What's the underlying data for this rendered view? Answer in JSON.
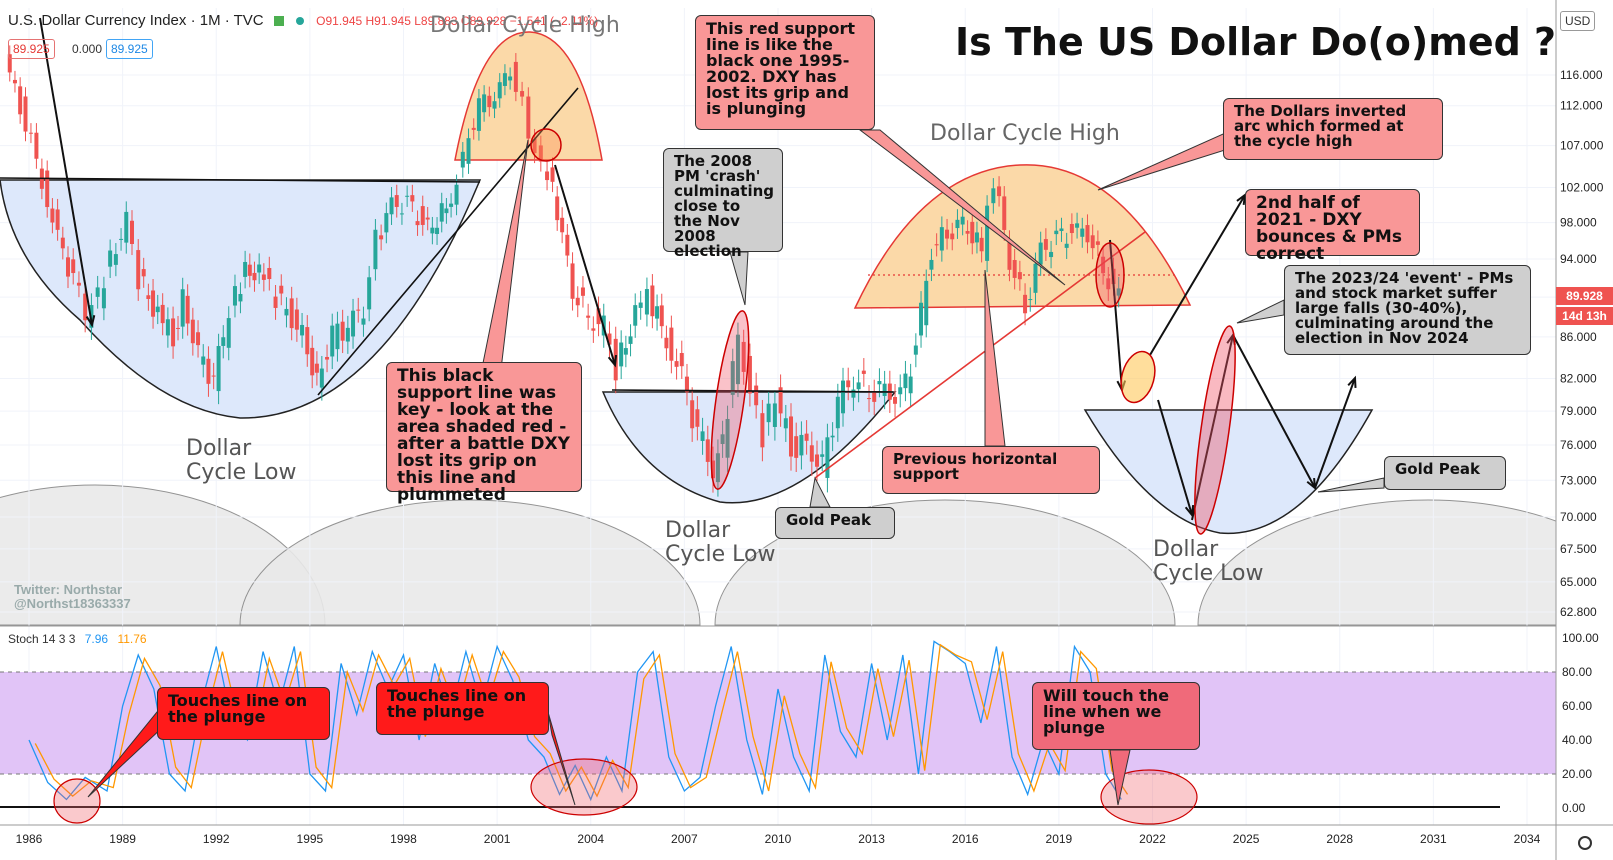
{
  "header": {
    "symbol": "U.S. Dollar Currency Index · 1M · TVC",
    "ohlc": "O91.945  H91.945  L89.883  C89.928  −1.541 (−2.11%)",
    "price_box_1": "89.925",
    "price_box_2": "0.000",
    "price_box_3": "89.925"
  },
  "title": "Is The US Dollar Do(o)med ?",
  "currency": "USD",
  "price_tag": {
    "price": "89.928",
    "countdown": "14d 13h"
  },
  "watermark": {
    "line1": "Twitter: Northstar",
    "line2": "@Northst18363337"
  },
  "stoch_header": {
    "label": "Stoch 14 3 3",
    "k": "7.96",
    "d": "11.76"
  },
  "cycle_labels": {
    "high_1": "Dollar Cycle High",
    "high_2": "Dollar Cycle High",
    "low_1": [
      "Dollar",
      "Cycle Low"
    ],
    "low_2": [
      "Dollar",
      "Cycle Low"
    ],
    "low_3": [
      "Dollar",
      "Cycle Low"
    ]
  },
  "annotations": {
    "red_support": "This red support line is like the black one 1995-2002. DXY has lost its grip and is plunging",
    "pm_crash": "The 2008 PM 'crash' culminating close to the Nov 2008 election",
    "inverted_arc": "The Dollars inverted arc which formed at the cycle high",
    "second_half_2021": "2nd half of 2021 - DXY bounces & PMs correct",
    "event_2023": "The 2023/24 'event' - PMs and stock market suffer large falls (30-40%), culminating around the election in Nov 2024",
    "black_support": "This black support line was key - look at the area shaded red - after a battle DXY lost its grip on this line and plummeted",
    "previous_horizontal": "Previous horizontal support",
    "gold_peak_1": "Gold Peak",
    "gold_peak_2": "Gold Peak",
    "touches_1": "Touches line on the plunge",
    "touches_2": "Touches line on the plunge",
    "will_touch": "Will touch the line when we plunge"
  },
  "colors": {
    "candle_up": "#26a69a",
    "candle_down": "#ef5350",
    "stoch_k": "#2196f3",
    "stoch_d": "#ff9800",
    "stoch_band": "#e1c4f7",
    "arc_blue": "#dde8fb",
    "arc_orange": "#fbd9a8",
    "grey_arc": "#e9e9e9"
  },
  "chart_data": [
    {
      "type": "line",
      "series_kind": "candlestick-approximation",
      "x_axis": {
        "ticks": [
          "1986",
          "1989",
          "1992",
          "1995",
          "1998",
          "2001",
          "2004",
          "2007",
          "2010",
          "2013",
          "2016",
          "2019",
          "2022",
          "2025",
          "2028",
          "2031",
          "2034"
        ],
        "range": [
          1985.5,
          2035.5
        ]
      },
      "y_axis": {
        "ticks": [
          116,
          112,
          107,
          102,
          98,
          94,
          90,
          86,
          82,
          79,
          76,
          73,
          70,
          67.5,
          65,
          62.8
        ],
        "tick_labels": [
          "116.000",
          "112.000",
          "107.000",
          "102.000",
          "98.000",
          "94.000",
          "90.000",
          "86.000",
          "82.000",
          "79.000",
          "76.000",
          "73.000",
          "70.000",
          "67.500",
          "65.000",
          "62.800"
        ],
        "scale": "log",
        "range": [
          61.5,
          123
        ]
      },
      "x": [
        1985.3,
        1985.8,
        1986.5,
        1987.0,
        1987.5,
        1987.9,
        1988.3,
        1988.7,
        1989.2,
        1989.6,
        1990.2,
        1990.7,
        1991.0,
        1991.5,
        1992.0,
        1992.3,
        1992.7,
        1993.0,
        1993.6,
        1994.0,
        1994.5,
        1995.0,
        1995.3,
        1995.8,
        1996.3,
        1996.8,
        1997.2,
        1997.7,
        1998.2,
        1998.7,
        1999.0,
        1999.6,
        2000.0,
        2000.5,
        2001.0,
        2001.5,
        2001.9,
        2002.3,
        2002.7,
        2003.0,
        2003.5,
        2004.0,
        2004.5,
        2004.9,
        2005.5,
        2005.9,
        2006.5,
        2007.0,
        2007.5,
        2008.0,
        2008.3,
        2008.8,
        2009.2,
        2009.6,
        2010.0,
        2010.5,
        2011.0,
        2011.5,
        2012.0,
        2012.5,
        2013.0,
        2013.5,
        2014.0,
        2014.5,
        2015.0,
        2015.5,
        2016.0,
        2016.6,
        2017.0,
        2017.5,
        2018.0,
        2018.5,
        2019.0,
        2019.5,
        2020.0,
        2020.5,
        2021.0
      ],
      "values": [
        118,
        112,
        103,
        96,
        92,
        88,
        90,
        94,
        98,
        92,
        88,
        86,
        90,
        84,
        82,
        86,
        90,
        93,
        92,
        90,
        88,
        85,
        82,
        86,
        87,
        89,
        96,
        100,
        100,
        98,
        97,
        101,
        106,
        112,
        113,
        117,
        112,
        106,
        104,
        99,
        91,
        88,
        87,
        83,
        88,
        90,
        86,
        82,
        77,
        74,
        76,
        86,
        81,
        77,
        80,
        76,
        76,
        74,
        80,
        82,
        81,
        81,
        80,
        85,
        95,
        97,
        98,
        95,
        103,
        94,
        89,
        95,
        96,
        97,
        97,
        93,
        90
      ],
      "title": "Is The US Dollar Do(o)med ?"
    },
    {
      "type": "line",
      "title": "Stoch 14 3 3",
      "y_axis": {
        "ticks": [
          100,
          80,
          60,
          40,
          20,
          0
        ],
        "tick_labels": [
          "100.00",
          "80.00",
          "60.00",
          "40.00",
          "20.00",
          "0.00"
        ],
        "range": [
          -8,
          105
        ]
      },
      "band": [
        20,
        80
      ],
      "series": [
        {
          "name": "%K",
          "x": [
            1986.0,
            1986.6,
            1987.2,
            1987.8,
            1988.5,
            1989.0,
            1989.5,
            1990.0,
            1990.5,
            1991.0,
            1991.5,
            1992.0,
            1992.5,
            1993.0,
            1993.5,
            1994.0,
            1994.5,
            1995.0,
            1995.5,
            1996.0,
            1996.5,
            1997.0,
            1997.5,
            1998.0,
            1998.5,
            1999.0,
            1999.5,
            2000.0,
            2000.5,
            2001.0,
            2001.5,
            2002.0,
            2002.5,
            2003.0,
            2003.5,
            2004.0,
            2004.5,
            2005.0,
            2005.5,
            2006.0,
            2006.5,
            2007.0,
            2007.5,
            2008.0,
            2008.5,
            2009.0,
            2009.5,
            2010.0,
            2010.5,
            2011.0,
            2011.5,
            2012.0,
            2012.5,
            2013.0,
            2013.5,
            2014.0,
            2014.5,
            2015.0,
            2015.5,
            2016.0,
            2016.5,
            2017.0,
            2017.5,
            2018.0,
            2018.5,
            2019.0,
            2019.5,
            2020.0,
            2020.5,
            2021.0
          ],
          "values": [
            40,
            15,
            5,
            18,
            10,
            60,
            90,
            70,
            20,
            10,
            60,
            95,
            50,
            40,
            92,
            60,
            95,
            20,
            10,
            85,
            55,
            92,
            70,
            90,
            40,
            85,
            55,
            92,
            60,
            95,
            75,
            40,
            30,
            8,
            25,
            5,
            30,
            10,
            80,
            92,
            30,
            10,
            18,
            60,
            95,
            40,
            8,
            70,
            30,
            10,
            90,
            45,
            30,
            85,
            40,
            90,
            20,
            98,
            92,
            85,
            50,
            95,
            30,
            8,
            40,
            20,
            95,
            80,
            20,
            5
          ]
        },
        {
          "name": "%D",
          "x": [
            1986.2,
            1986.8,
            1987.4,
            1988.0,
            1988.7,
            1989.2,
            1989.7,
            1990.2,
            1990.7,
            1991.2,
            1991.7,
            1992.2,
            1992.7,
            1993.2,
            1993.7,
            1994.2,
            1994.7,
            1995.2,
            1995.7,
            1996.2,
            1996.7,
            1997.2,
            1997.7,
            1998.2,
            1998.7,
            1999.2,
            1999.7,
            2000.2,
            2000.7,
            2001.2,
            2001.7,
            2002.2,
            2002.7,
            2003.2,
            2003.7,
            2004.2,
            2004.7,
            2005.2,
            2005.7,
            2006.2,
            2006.7,
            2007.2,
            2007.7,
            2008.2,
            2008.7,
            2009.2,
            2009.7,
            2010.2,
            2010.7,
            2011.2,
            2011.7,
            2012.2,
            2012.7,
            2013.2,
            2013.7,
            2014.2,
            2014.7,
            2015.2,
            2015.7,
            2016.2,
            2016.7,
            2017.2,
            2017.7,
            2018.2,
            2018.7,
            2019.2,
            2019.7,
            2020.2,
            2020.7,
            2021.2
          ],
          "values": [
            38,
            17,
            7,
            16,
            12,
            55,
            88,
            72,
            24,
            12,
            56,
            92,
            52,
            42,
            88,
            62,
            92,
            24,
            12,
            80,
            57,
            90,
            72,
            88,
            42,
            82,
            57,
            90,
            62,
            92,
            77,
            42,
            32,
            10,
            24,
            7,
            28,
            12,
            76,
            90,
            32,
            12,
            18,
            56,
            92,
            42,
            10,
            66,
            32,
            12,
            86,
            47,
            32,
            82,
            42,
            87,
            22,
            96,
            90,
            86,
            52,
            92,
            32,
            10,
            38,
            22,
            92,
            82,
            22,
            8
          ]
        }
      ]
    }
  ]
}
